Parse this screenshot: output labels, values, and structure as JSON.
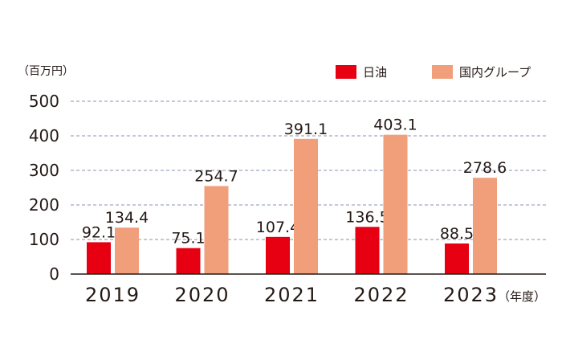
{
  "chart_data": {
    "type": "bar",
    "unit_label": "（百万円）",
    "x_unit_label": "（年度）",
    "categories": [
      "2019",
      "2020",
      "2021",
      "2022",
      "2023"
    ],
    "series": [
      {
        "name": "日油",
        "color": "#e60012",
        "values": [
          92.1,
          75.1,
          107.4,
          136.5,
          88.5
        ],
        "labels": [
          "92.1",
          "75.1",
          "107.4",
          "136.5",
          "88.5"
        ]
      },
      {
        "name": "国内グループ",
        "color": "#f19e7b",
        "values": [
          134.4,
          254.7,
          391.1,
          403.1,
          278.6
        ],
        "labels": [
          "134.4",
          "254.7",
          "391.1",
          "403.1",
          "278.6"
        ]
      }
    ],
    "ylim": [
      0,
      500
    ],
    "yticks": [
      0,
      100,
      200,
      300,
      400,
      500
    ],
    "ytick_labels": [
      "0",
      "100",
      "200",
      "300",
      "400",
      "500"
    ],
    "grid": true,
    "legend_position": "top-right"
  }
}
